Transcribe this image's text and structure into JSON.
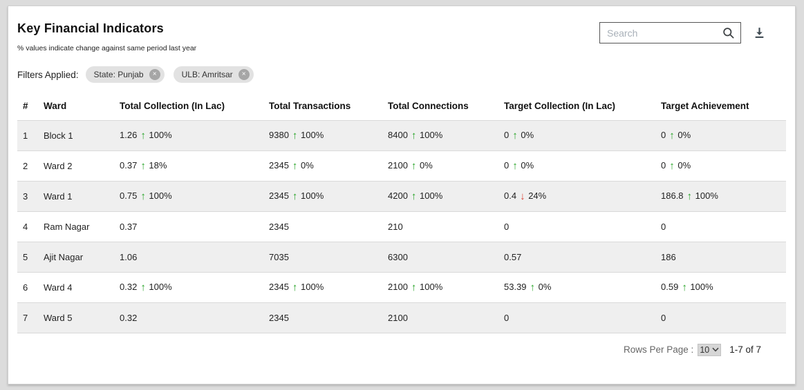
{
  "header": {
    "title": "Key Financial Indicators",
    "subtitle": "% values indicate change against same period last year",
    "filters_label": "Filters Applied:",
    "filters": [
      {
        "label": "State: Punjab"
      },
      {
        "label": "ULB: Amritsar"
      }
    ],
    "search_placeholder": "Search"
  },
  "table": {
    "columns": [
      "#",
      "Ward",
      "Total Collection (In Lac)",
      "Total Transactions",
      "Total Connections",
      "Target Collection (In Lac)",
      "Target Achievement"
    ],
    "rows": [
      {
        "num": "1",
        "ward": "Block 1",
        "cells": [
          {
            "value": "1.26",
            "trend": "up",
            "pct": "100%"
          },
          {
            "value": "9380",
            "trend": "up",
            "pct": "100%"
          },
          {
            "value": "8400",
            "trend": "up",
            "pct": "100%"
          },
          {
            "value": "0",
            "trend": "up",
            "pct": "0%"
          },
          {
            "value": "0",
            "trend": "up",
            "pct": "0%"
          }
        ]
      },
      {
        "num": "2",
        "ward": "Ward 2",
        "cells": [
          {
            "value": "0.37",
            "trend": "up",
            "pct": "18%"
          },
          {
            "value": "2345",
            "trend": "up",
            "pct": "0%"
          },
          {
            "value": "2100",
            "trend": "up",
            "pct": "0%"
          },
          {
            "value": "0",
            "trend": "up",
            "pct": "0%"
          },
          {
            "value": "0",
            "trend": "up",
            "pct": "0%"
          }
        ]
      },
      {
        "num": "3",
        "ward": "Ward 1",
        "cells": [
          {
            "value": "0.75",
            "trend": "up",
            "pct": "100%"
          },
          {
            "value": "2345",
            "trend": "up",
            "pct": "100%"
          },
          {
            "value": "4200",
            "trend": "up",
            "pct": "100%"
          },
          {
            "value": "0.4",
            "trend": "down",
            "pct": "24%"
          },
          {
            "value": "186.8",
            "trend": "up",
            "pct": "100%"
          }
        ]
      },
      {
        "num": "4",
        "ward": "Ram Nagar",
        "cells": [
          {
            "value": "0.37"
          },
          {
            "value": "2345"
          },
          {
            "value": "210"
          },
          {
            "value": "0"
          },
          {
            "value": "0"
          }
        ]
      },
      {
        "num": "5",
        "ward": "Ajit Nagar",
        "cells": [
          {
            "value": "1.06"
          },
          {
            "value": "7035"
          },
          {
            "value": "6300"
          },
          {
            "value": "0.57"
          },
          {
            "value": "186"
          }
        ]
      },
      {
        "num": "6",
        "ward": "Ward 4",
        "cells": [
          {
            "value": "0.32",
            "trend": "up",
            "pct": "100%"
          },
          {
            "value": "2345",
            "trend": "up",
            "pct": "100%"
          },
          {
            "value": "2100",
            "trend": "up",
            "pct": "100%"
          },
          {
            "value": "53.39",
            "trend": "up",
            "pct": "0%"
          },
          {
            "value": "0.59",
            "trend": "up",
            "pct": "100%"
          }
        ]
      },
      {
        "num": "7",
        "ward": "Ward 5",
        "cells": [
          {
            "value": "0.32"
          },
          {
            "value": "2345"
          },
          {
            "value": "2100"
          },
          {
            "value": "0"
          },
          {
            "value": "0"
          }
        ]
      }
    ]
  },
  "footer": {
    "rows_per_page_label": "Rows Per Page :",
    "rows_per_page_value": "10",
    "range_label": "1-7 of 7"
  },
  "colors": {
    "trend_up": "#28a428",
    "trend_down": "#dc4437",
    "row_alt": "#efefef",
    "page_bg": "#dcdcdc"
  }
}
